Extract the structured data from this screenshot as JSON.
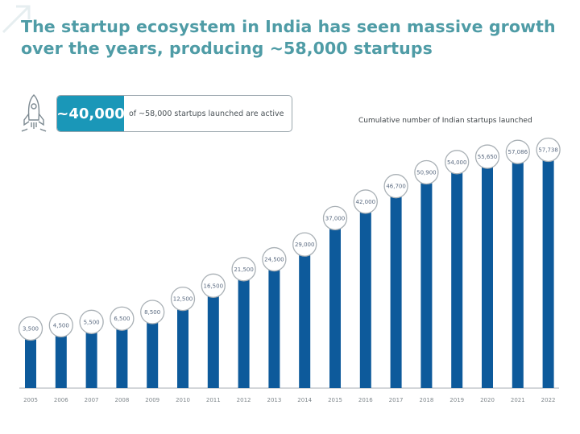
{
  "header": {
    "title_line1": "The startup ecosystem in India has seen massive growth",
    "title_line2": "over the years, producing ~58,000 startups"
  },
  "callout": {
    "value": "~40,000",
    "text": "of ~58,000 startups launched are active",
    "icon": "rocket-icon"
  },
  "colors": {
    "title": "#4f9ca6",
    "bar": "#0d5a9b",
    "callout_fill": "#1a97b8"
  },
  "chart_data": {
    "type": "bar",
    "title": "Cumulative number of Indian startups launched",
    "xlabel": "",
    "ylabel": "",
    "grid": false,
    "legend": "none",
    "categories": [
      "2005",
      "2006",
      "2007",
      "2008",
      "2009",
      "2010",
      "2011",
      "2012",
      "2013",
      "2014",
      "2015",
      "2016",
      "2017",
      "2018",
      "2019",
      "2020",
      "2021",
      "2022"
    ],
    "values": [
      3500,
      4500,
      5500,
      6500,
      8500,
      12500,
      16500,
      21500,
      24500,
      29000,
      37000,
      42000,
      46700,
      50900,
      54000,
      55650,
      57086,
      57738
    ],
    "labels": [
      "3,500",
      "4,500",
      "5,500",
      "6,500",
      "8,500",
      "12,500",
      "16,500",
      "21,500",
      "24,500",
      "29,000",
      "37,000",
      "42,000",
      "46,700",
      "50,900",
      "54,000",
      "55,650",
      "57,086",
      "57,738"
    ]
  }
}
